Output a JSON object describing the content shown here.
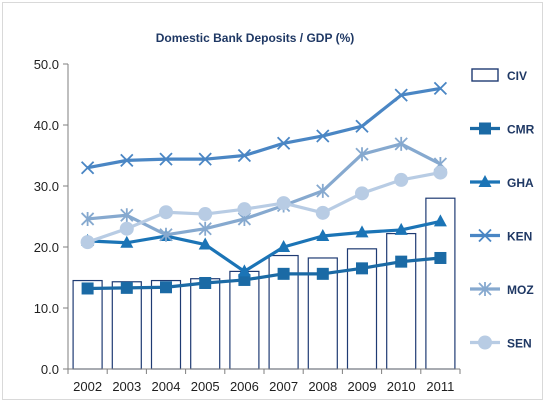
{
  "chart_data": {
    "type": "bar+line",
    "title": "Domestic Bank Deposits / GDP (%)",
    "xlabel": "",
    "ylabel": "",
    "ylim": [
      0,
      50
    ],
    "yticks": [
      "0.0",
      "10.0",
      "20.0",
      "30.0",
      "40.0",
      "50.0"
    ],
    "categories": [
      "2002",
      "2003",
      "2004",
      "2005",
      "2006",
      "2007",
      "2008",
      "2009",
      "2010",
      "2011"
    ],
    "grid": false,
    "legend_position": "right",
    "series": [
      {
        "name": "CIV",
        "type": "bar",
        "color": "#1f3b73",
        "fill": "#ffffff",
        "values": [
          14.5,
          14.3,
          14.5,
          14.8,
          16.0,
          18.6,
          18.2,
          19.7,
          22.2,
          28.0
        ]
      },
      {
        "name": "CMR",
        "type": "line",
        "marker": "square",
        "color": "#1b6aa5",
        "values": [
          13.2,
          13.3,
          13.4,
          14.1,
          14.6,
          15.6,
          15.6,
          16.5,
          17.6,
          18.2
        ]
      },
      {
        "name": "GHA",
        "type": "line",
        "marker": "triangle",
        "color": "#1b74b6",
        "values": [
          21.0,
          20.7,
          21.8,
          20.4,
          16.0,
          20.0,
          21.8,
          22.4,
          22.8,
          24.2
        ]
      },
      {
        "name": "KEN",
        "type": "line",
        "marker": "x",
        "color": "#4a86c4",
        "values": [
          33.0,
          34.2,
          34.4,
          34.4,
          35.0,
          37.0,
          38.2,
          39.8,
          44.9,
          46.0
        ]
      },
      {
        "name": "MOZ",
        "type": "line",
        "marker": "star",
        "color": "#86a9cf",
        "values": [
          24.6,
          25.2,
          22.0,
          23.0,
          24.6,
          26.8,
          29.2,
          35.2,
          36.9,
          33.6
        ]
      },
      {
        "name": "SEN",
        "type": "line",
        "marker": "circle",
        "color": "#b8cce4",
        "values": [
          20.8,
          23.0,
          25.7,
          25.4,
          26.2,
          27.2,
          25.6,
          28.8,
          31.0,
          32.2
        ]
      }
    ]
  }
}
